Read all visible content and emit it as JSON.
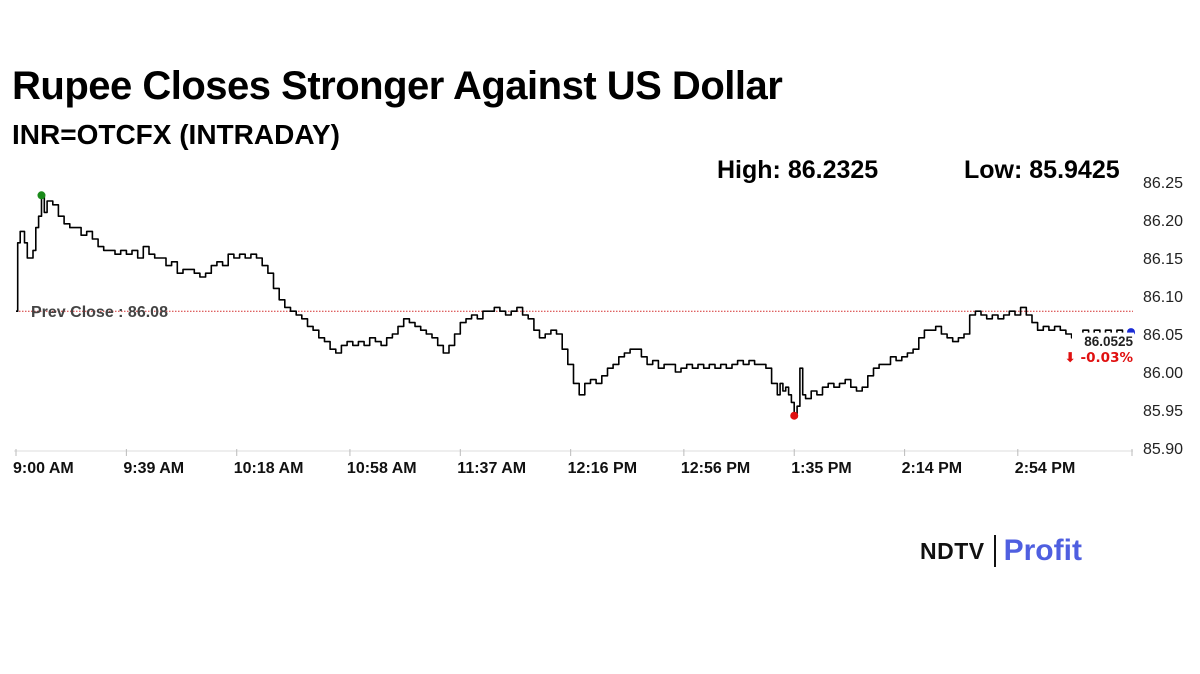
{
  "header": {
    "title": "Rupee Closes Stronger Against US Dollar",
    "subtitle": "INR=OTCFX (INTRADAY)",
    "high_text": "High: 86.2325",
    "low_text": "Low: 85.9425"
  },
  "brand": {
    "ndtv": "NDTV",
    "profit": "Profit",
    "profit_color": "#4f5fe0"
  },
  "chart_data": {
    "type": "line",
    "title": "Rupee Closes Stronger Against US Dollar",
    "subtitle": "INR=OTCFX (INTRADAY)",
    "xlabel": "",
    "ylabel": "",
    "x_tick_labels": [
      "9:00 AM",
      "9:39 AM",
      "10:18 AM",
      "10:58 AM",
      "11:37 AM",
      "12:16 PM",
      "12:56 PM",
      "1:35 PM",
      "2:14 PM",
      "2:54 PM"
    ],
    "x_range_minutes": [
      0,
      394
    ],
    "y_tick_labels": [
      "86.25",
      "86.20",
      "86.15",
      "86.10",
      "86.05",
      "86.00",
      "85.95",
      "85.90"
    ],
    "ylim": [
      85.9,
      86.25
    ],
    "grid": false,
    "reference_line": {
      "label": "Prev Close : 86.08",
      "value": 86.08,
      "color": "#d32f2f"
    },
    "high": {
      "value": 86.2325,
      "minute": 9,
      "color": "#1a8a1a"
    },
    "low": {
      "value": 85.9425,
      "minute": 275,
      "color": "#e01010"
    },
    "last": {
      "value": 86.0525,
      "label": "86.0525",
      "change_label": "⬇ -0.03%",
      "change_color": "#e01010",
      "marker_color": "#1a2bd6"
    },
    "series": [
      {
        "name": "INR=OTCFX",
        "color": "#000000",
        "points": [
          [
            0,
            86.08
          ],
          [
            0.6,
            86.17
          ],
          [
            1.5,
            86.185
          ],
          [
            3,
            86.17
          ],
          [
            4,
            86.15
          ],
          [
            6,
            86.16
          ],
          [
            7,
            86.19
          ],
          [
            8,
            86.205
          ],
          [
            9,
            86.2325
          ],
          [
            10,
            86.21
          ],
          [
            11,
            86.225
          ],
          [
            13,
            86.22
          ],
          [
            15,
            86.205
          ],
          [
            17,
            86.195
          ],
          [
            19,
            86.19
          ],
          [
            21,
            86.19
          ],
          [
            23,
            86.18
          ],
          [
            25,
            86.185
          ],
          [
            27,
            86.175
          ],
          [
            29,
            86.165
          ],
          [
            31,
            86.16
          ],
          [
            33,
            86.16
          ],
          [
            35,
            86.155
          ],
          [
            37,
            86.16
          ],
          [
            39,
            86.155
          ],
          [
            41,
            86.16
          ],
          [
            43,
            86.15
          ],
          [
            45,
            86.165
          ],
          [
            47,
            86.155
          ],
          [
            49,
            86.15
          ],
          [
            51,
            86.15
          ],
          [
            53,
            86.14
          ],
          [
            55,
            86.145
          ],
          [
            57,
            86.13
          ],
          [
            59,
            86.135
          ],
          [
            61,
            86.135
          ],
          [
            63,
            86.13
          ],
          [
            65,
            86.125
          ],
          [
            67,
            86.13
          ],
          [
            69,
            86.14
          ],
          [
            71,
            86.145
          ],
          [
            73,
            86.14
          ],
          [
            75,
            86.155
          ],
          [
            77,
            86.15
          ],
          [
            79,
            86.155
          ],
          [
            81,
            86.15
          ],
          [
            83,
            86.155
          ],
          [
            85,
            86.15
          ],
          [
            87,
            86.14
          ],
          [
            89,
            86.13
          ],
          [
            91,
            86.11
          ],
          [
            93,
            86.095
          ],
          [
            95,
            86.085
          ],
          [
            97,
            86.08
          ],
          [
            99,
            86.075
          ],
          [
            101,
            86.07
          ],
          [
            103,
            86.06
          ],
          [
            105,
            86.055
          ],
          [
            107,
            86.045
          ],
          [
            109,
            86.04
          ],
          [
            111,
            86.03
          ],
          [
            113,
            86.025
          ],
          [
            115,
            86.035
          ],
          [
            117,
            86.04
          ],
          [
            119,
            86.035
          ],
          [
            121,
            86.04
          ],
          [
            123,
            86.035
          ],
          [
            125,
            86.045
          ],
          [
            127,
            86.04
          ],
          [
            129,
            86.035
          ],
          [
            131,
            86.045
          ],
          [
            133,
            86.05
          ],
          [
            135,
            86.06
          ],
          [
            137,
            86.07
          ],
          [
            139,
            86.065
          ],
          [
            141,
            86.06
          ],
          [
            143,
            86.055
          ],
          [
            145,
            86.05
          ],
          [
            147,
            86.045
          ],
          [
            149,
            86.035
          ],
          [
            151,
            86.025
          ],
          [
            153,
            86.035
          ],
          [
            155,
            86.05
          ],
          [
            157,
            86.065
          ],
          [
            159,
            86.07
          ],
          [
            161,
            86.075
          ],
          [
            163,
            86.07
          ],
          [
            165,
            86.08
          ],
          [
            167,
            86.08
          ],
          [
            169,
            86.085
          ],
          [
            171,
            86.08
          ],
          [
            173,
            86.075
          ],
          [
            175,
            86.08
          ],
          [
            177,
            86.085
          ],
          [
            179,
            86.075
          ],
          [
            181,
            86.07
          ],
          [
            183,
            86.055
          ],
          [
            185,
            86.045
          ],
          [
            187,
            86.05
          ],
          [
            189,
            86.055
          ],
          [
            191,
            86.05
          ],
          [
            193,
            86.03
          ],
          [
            195,
            86.01
          ],
          [
            197,
            85.985
          ],
          [
            199,
            85.97
          ],
          [
            201,
            85.985
          ],
          [
            203,
            85.99
          ],
          [
            205,
            85.985
          ],
          [
            207,
            85.995
          ],
          [
            209,
            86.005
          ],
          [
            211,
            86.01
          ],
          [
            213,
            86.02
          ],
          [
            215,
            86.025
          ],
          [
            217,
            86.03
          ],
          [
            219,
            86.03
          ],
          [
            221,
            86.02
          ],
          [
            223,
            86.01
          ],
          [
            225,
            86.015
          ],
          [
            227,
            86.005
          ],
          [
            229,
            86.01
          ],
          [
            231,
            86.01
          ],
          [
            233,
            86.0
          ],
          [
            235,
            86.005
          ],
          [
            237,
            86.01
          ],
          [
            239,
            86.005
          ],
          [
            241,
            86.01
          ],
          [
            243,
            86.005
          ],
          [
            245,
            86.01
          ],
          [
            247,
            86.005
          ],
          [
            249,
            86.01
          ],
          [
            251,
            86.005
          ],
          [
            253,
            86.01
          ],
          [
            255,
            86.015
          ],
          [
            257,
            86.01
          ],
          [
            259,
            86.015
          ],
          [
            261,
            86.01
          ],
          [
            263,
            86.01
          ],
          [
            265,
            86.005
          ],
          [
            267,
            85.985
          ],
          [
            269,
            85.97
          ],
          [
            270,
            85.985
          ],
          [
            271,
            85.975
          ],
          [
            272,
            85.98
          ],
          [
            273,
            85.97
          ],
          [
            274,
            85.96
          ],
          [
            275,
            85.9425
          ],
          [
            276,
            85.955
          ],
          [
            277,
            86.005
          ],
          [
            278,
            85.97
          ],
          [
            279,
            85.965
          ],
          [
            281,
            85.975
          ],
          [
            283,
            85.97
          ],
          [
            285,
            85.98
          ],
          [
            287,
            85.985
          ],
          [
            289,
            85.98
          ],
          [
            291,
            85.985
          ],
          [
            293,
            85.99
          ],
          [
            295,
            85.98
          ],
          [
            297,
            85.975
          ],
          [
            299,
            85.98
          ],
          [
            301,
            85.995
          ],
          [
            303,
            86.005
          ],
          [
            305,
            86.01
          ],
          [
            307,
            86.01
          ],
          [
            309,
            86.02
          ],
          [
            311,
            86.015
          ],
          [
            313,
            86.02
          ],
          [
            315,
            86.025
          ],
          [
            317,
            86.03
          ],
          [
            319,
            86.045
          ],
          [
            321,
            86.055
          ],
          [
            323,
            86.055
          ],
          [
            325,
            86.06
          ],
          [
            327,
            86.05
          ],
          [
            329,
            86.045
          ],
          [
            331,
            86.04
          ],
          [
            333,
            86.045
          ],
          [
            335,
            86.05
          ],
          [
            337,
            86.075
          ],
          [
            339,
            86.08
          ],
          [
            341,
            86.075
          ],
          [
            343,
            86.07
          ],
          [
            345,
            86.075
          ],
          [
            347,
            86.07
          ],
          [
            349,
            86.075
          ],
          [
            351,
            86.08
          ],
          [
            353,
            86.075
          ],
          [
            355,
            86.085
          ],
          [
            357,
            86.075
          ],
          [
            359,
            86.065
          ],
          [
            361,
            86.055
          ],
          [
            363,
            86.06
          ],
          [
            365,
            86.055
          ],
          [
            367,
            86.06
          ],
          [
            369,
            86.055
          ],
          [
            371,
            86.05
          ],
          [
            373,
            86.045
          ],
          [
            374,
            86.04
          ],
          [
            375,
            86.05
          ],
          [
            377,
            86.055
          ],
          [
            379,
            86.05
          ],
          [
            381,
            86.055
          ],
          [
            383,
            86.05
          ],
          [
            385,
            86.055
          ],
          [
            387,
            86.05
          ],
          [
            389,
            86.055
          ],
          [
            391,
            86.05
          ],
          [
            393,
            86.0525
          ]
        ]
      }
    ]
  }
}
